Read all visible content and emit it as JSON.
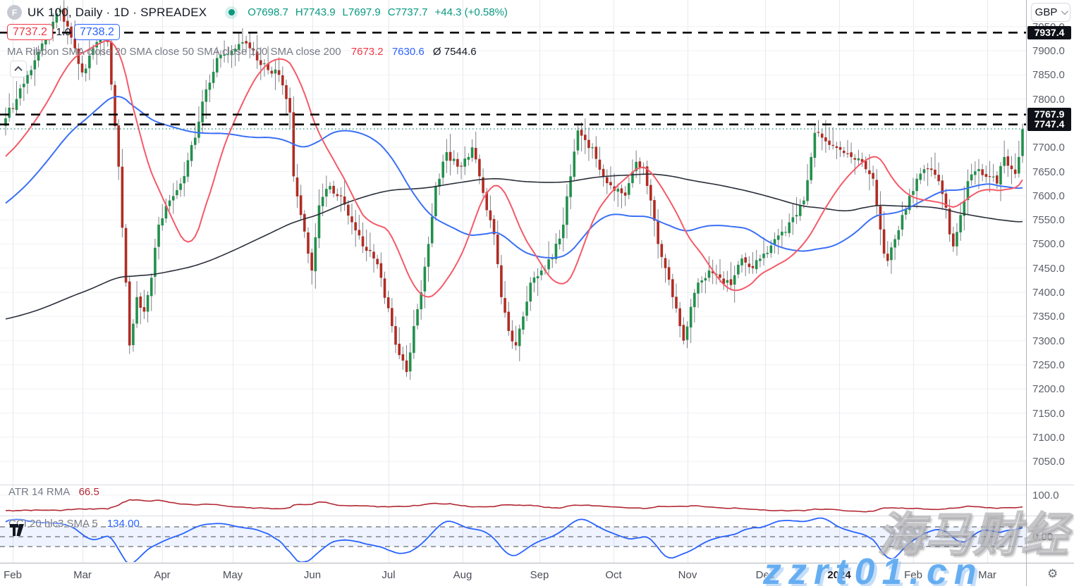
{
  "header": {
    "symbol_icon_letter": "F",
    "symbol_title": "UK 100, Daily · 1D · SPREADEX",
    "ohlc": {
      "open": "O7698.7",
      "high": "H7743.9",
      "low": "L7697.9",
      "close": "C7737.7",
      "change": "+44.3 (+0.58%)"
    },
    "bid": "7737.2",
    "spread": "1.0",
    "ask": "7738.2",
    "ma_ribbon_label": "MA Ribbon SMA close 20 SMA close 50 SMA close 100 SMA close 200",
    "ma_values": {
      "sma20": "7673.2",
      "sma50": "7630.6",
      "avg": "Ø 7544.6"
    }
  },
  "indicators": {
    "atr": {
      "label": "ATR 14 RMA",
      "value": "66.5"
    },
    "cci": {
      "label": "CCI 20 hlc3 SMA 5",
      "value": "134.00"
    }
  },
  "axis": {
    "currency": "GBP",
    "price_ticks": [
      "7950.0",
      "7900.0",
      "7850.0",
      "7800.0",
      "7700.0",
      "7650.0",
      "7600.0",
      "7550.0",
      "7500.0",
      "7450.0",
      "7400.0",
      "7350.0",
      "7300.0",
      "7250.0",
      "7200.0",
      "7150.0",
      "7100.0",
      "7050.0"
    ],
    "price_tags": [
      "7937.4",
      "7767.9",
      "7747.4"
    ],
    "atr_tick": "100.0",
    "cci_tick": "0.00",
    "months": [
      [
        "Feb",
        18
      ],
      [
        "Mar",
        117
      ],
      [
        "Apr",
        230
      ],
      [
        "May",
        330
      ],
      [
        "Jun",
        443
      ],
      [
        "Jul",
        551
      ],
      [
        "Aug",
        656
      ],
      [
        "Sep",
        765
      ],
      [
        "Oct",
        870
      ],
      [
        "Nov",
        975
      ],
      [
        "Dec",
        1085
      ],
      [
        "2024",
        1190
      ],
      [
        "Feb",
        1295
      ],
      [
        "Mar",
        1400
      ]
    ]
  },
  "watermarks": {
    "brand": "海马财经",
    "site": "zzrt01.cn"
  },
  "colors": {
    "up": "#22904c",
    "down": "#b02c23",
    "wick": "#7d8087",
    "ma20": "#f55a68",
    "ma50": "#3b70f6",
    "ma200": "#2a2e39",
    "atr": "#b22833",
    "cci": "#2962ff",
    "cci_band": "rgba(41,98,255,0.08)",
    "cci_dash": "#6a6d76",
    "level": "#000000",
    "current": "#3a9d8c",
    "grid_h": "#f0f1f4",
    "grid_v": "#e7e9ee",
    "separator": "#d8dbe1",
    "axis_border": "#b0b3bb",
    "tag_bg": "#0d1117",
    "legend_green": "#089981"
  },
  "chart_data": {
    "type": "candlestick",
    "symbol": "UK 100",
    "timeframe": "1D",
    "x_range": [
      "2023-02-01",
      "2024-03-15"
    ],
    "y_range": [
      7000,
      8005
    ],
    "grid": true,
    "levels": [
      7937.4,
      7767.9,
      7747.4
    ],
    "current_price": 7738.2,
    "last_ohlc": {
      "o": 7698.7,
      "h": 7743.9,
      "l": 7697.9,
      "c": 7737.7,
      "change": 44.3,
      "change_pct": 0.58
    },
    "overlays": [
      {
        "name": "SMA 20",
        "period": 20,
        "last": 7673.2
      },
      {
        "name": "SMA 50",
        "period": 50,
        "last": 7630.6
      },
      {
        "name": "SMA 200",
        "period": 200,
        "last": 7544.6
      }
    ],
    "panes": [
      {
        "name": "ATR 14 RMA",
        "last": 66.5,
        "ticks": [
          100
        ]
      },
      {
        "name": "CCI 20 hlc3 SMA 5",
        "last": 134.0,
        "levels": [
          100,
          0,
          -100
        ]
      }
    ],
    "anchors": [
      [
        0,
        7760
      ],
      [
        3,
        7800
      ],
      [
        6,
        7850
      ],
      [
        10,
        7915
      ],
      [
        13,
        7960
      ],
      [
        15,
        7985
      ],
      [
        17,
        7950
      ],
      [
        19,
        7905
      ],
      [
        21,
        7855
      ],
      [
        24,
        7905
      ],
      [
        27,
        7930
      ],
      [
        28,
        7918
      ],
      [
        29,
        7830
      ],
      [
        31,
        7660
      ],
      [
        33,
        7420
      ],
      [
        34,
        7290
      ],
      [
        35,
        7335
      ],
      [
        36,
        7390
      ],
      [
        38,
        7360
      ],
      [
        40,
        7430
      ],
      [
        42,
        7540
      ],
      [
        45,
        7590
      ],
      [
        48,
        7625
      ],
      [
        52,
        7720
      ],
      [
        55,
        7820
      ],
      [
        58,
        7885
      ],
      [
        62,
        7900
      ],
      [
        66,
        7915
      ],
      [
        69,
        7880
      ],
      [
        72,
        7860
      ],
      [
        75,
        7850
      ],
      [
        77,
        7800
      ],
      [
        78,
        7772
      ],
      [
        79,
        7640
      ],
      [
        81,
        7560
      ],
      [
        83,
        7480
      ],
      [
        84,
        7445
      ],
      [
        86,
        7580
      ],
      [
        89,
        7620
      ],
      [
        92,
        7600
      ],
      [
        95,
        7545
      ],
      [
        98,
        7495
      ],
      [
        101,
        7470
      ],
      [
        103,
        7430
      ],
      [
        106,
        7330
      ],
      [
        108,
        7270
      ],
      [
        110,
        7235
      ],
      [
        112,
        7330
      ],
      [
        114,
        7400
      ],
      [
        116,
        7500
      ],
      [
        118,
        7620
      ],
      [
        121,
        7690
      ],
      [
        124,
        7660
      ],
      [
        127,
        7680
      ],
      [
        128,
        7700
      ],
      [
        130,
        7640
      ],
      [
        132,
        7570
      ],
      [
        134,
        7520
      ],
      [
        136,
        7390
      ],
      [
        138,
        7320
      ],
      [
        140,
        7290
      ],
      [
        142,
        7350
      ],
      [
        144,
        7420
      ],
      [
        147,
        7445
      ],
      [
        150,
        7470
      ],
      [
        153,
        7540
      ],
      [
        155,
        7640
      ],
      [
        157,
        7735
      ],
      [
        159,
        7715
      ],
      [
        161,
        7700
      ],
      [
        164,
        7640
      ],
      [
        167,
        7610
      ],
      [
        170,
        7600
      ],
      [
        173,
        7670
      ],
      [
        175,
        7660
      ],
      [
        177,
        7590
      ],
      [
        179,
        7500
      ],
      [
        181,
        7450
      ],
      [
        183,
        7390
      ],
      [
        185,
        7330
      ],
      [
        186,
        7300
      ],
      [
        188,
        7370
      ],
      [
        190,
        7420
      ],
      [
        193,
        7445
      ],
      [
        196,
        7430
      ],
      [
        199,
        7415
      ],
      [
        202,
        7470
      ],
      [
        205,
        7450
      ],
      [
        208,
        7480
      ],
      [
        211,
        7510
      ],
      [
        214,
        7525
      ],
      [
        217,
        7560
      ],
      [
        219,
        7590
      ],
      [
        221,
        7680
      ],
      [
        222,
        7730
      ],
      [
        224,
        7720
      ],
      [
        226,
        7705
      ],
      [
        229,
        7695
      ],
      [
        232,
        7680
      ],
      [
        235,
        7670
      ],
      [
        238,
        7635
      ],
      [
        239,
        7580
      ],
      [
        240,
        7530
      ],
      [
        241,
        7480
      ],
      [
        242,
        7465
      ],
      [
        244,
        7510
      ],
      [
        246,
        7560
      ],
      [
        248,
        7600
      ],
      [
        250,
        7635
      ],
      [
        253,
        7655
      ],
      [
        256,
        7630
      ],
      [
        258,
        7575
      ],
      [
        259,
        7520
      ],
      [
        260,
        7495
      ],
      [
        262,
        7560
      ],
      [
        264,
        7630
      ],
      [
        267,
        7655
      ],
      [
        270,
        7640
      ],
      [
        272,
        7625
      ],
      [
        274,
        7680
      ],
      [
        276,
        7655
      ],
      [
        277,
        7645
      ],
      [
        278,
        7680
      ],
      [
        279,
        7737.7
      ]
    ],
    "prehistory_anchors": [
      [
        -200,
        7450
      ],
      [
        -170,
        7220
      ],
      [
        -150,
        7320
      ],
      [
        -128,
        7150
      ],
      [
        -110,
        6960
      ],
      [
        -95,
        7080
      ],
      [
        -80,
        7420
      ],
      [
        -60,
        7500
      ],
      [
        -40,
        7460
      ],
      [
        -20,
        7620
      ],
      [
        -5,
        7700
      ],
      [
        -1,
        7745
      ]
    ]
  }
}
